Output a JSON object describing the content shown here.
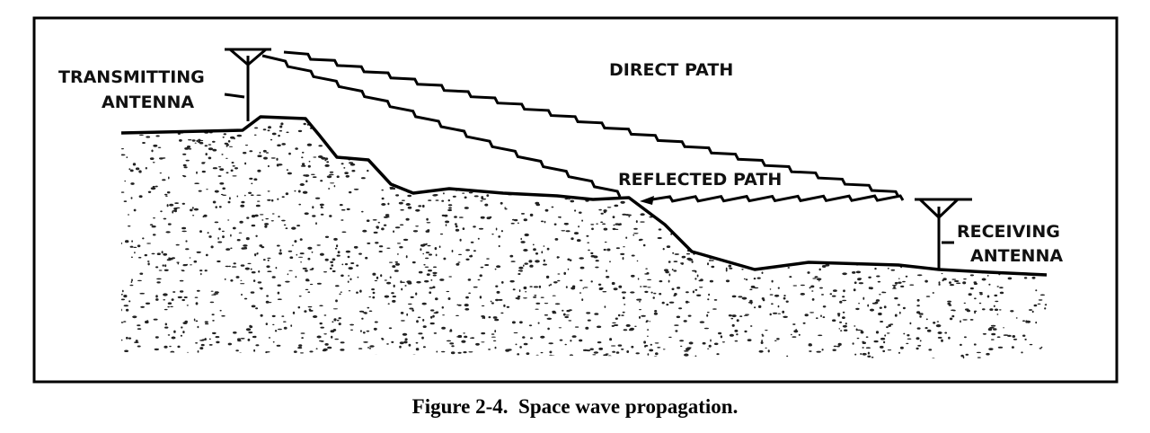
{
  "nodes": [
    {
      "label": [
        "TRANSMITTING",
        "ANTENNA"
      ]
    },
    {
      "label": [
        "DIRECT PATH"
      ]
    },
    {
      "label": [
        "REFLECTED PATH"
      ]
    },
    {
      "label": [
        "RECEIVING",
        "ANTENNA"
      ]
    }
  ],
  "caption": "Figure 2-4.  Space wave propagation."
}
